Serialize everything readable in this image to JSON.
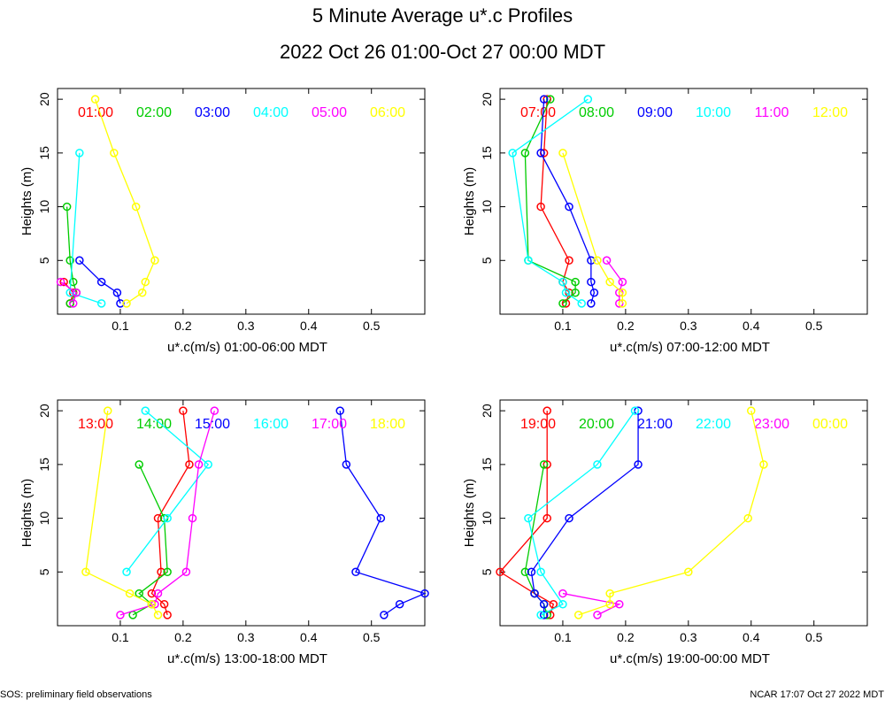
{
  "title": "5 Minute Average u*.c Profiles",
  "subtitle": "2022 Oct 26 01:00-Oct 27 00:00 MDT",
  "footer_left": "SOS: preliminary field observations",
  "footer_right": "NCAR 17:07 Oct 27 2022 MDT",
  "chart_data": [
    {
      "type": "line",
      "xlabel": "u*.c(m/s) 01:00-06:00 MDT",
      "ylabel": "Heights (m)",
      "xlim": [
        0.0,
        0.585
      ],
      "ylim": [
        0,
        21
      ],
      "xticks": [
        "0.1",
        "0.2",
        "0.3",
        "0.4",
        "0.5"
      ],
      "yticks": [
        "5",
        "10",
        "15",
        "20"
      ],
      "series": [
        {
          "name": "01:00",
          "color": "#ff0000",
          "points": [
            [
              0.02,
              1
            ],
            [
              0.025,
              2
            ],
            [
              0.01,
              3
            ]
          ]
        },
        {
          "name": "02:00",
          "color": "#00cc00",
          "points": [
            [
              0.02,
              1
            ],
            [
              0.03,
              2
            ],
            [
              0.025,
              3
            ],
            [
              0.02,
              5
            ],
            [
              0.015,
              10
            ]
          ]
        },
        {
          "name": "03:00",
          "color": "#0000ff",
          "points": [
            [
              0.1,
              1
            ],
            [
              0.095,
              2
            ],
            [
              0.07,
              3
            ],
            [
              0.035,
              5
            ]
          ]
        },
        {
          "name": "04:00",
          "color": "#00ffff",
          "points": [
            [
              0.07,
              1
            ],
            [
              0.02,
              2
            ],
            [
              0.035,
              15
            ]
          ]
        },
        {
          "name": "05:00",
          "color": "#ff00ff",
          "points": [
            [
              0.025,
              1
            ],
            [
              0.03,
              2
            ],
            [
              0.005,
              3
            ]
          ]
        },
        {
          "name": "06:00",
          "color": "#ffff00",
          "points": [
            [
              0.11,
              1
            ],
            [
              0.135,
              2
            ],
            [
              0.14,
              3
            ],
            [
              0.155,
              5
            ],
            [
              0.125,
              10
            ],
            [
              0.09,
              15
            ],
            [
              0.06,
              20
            ]
          ]
        }
      ]
    },
    {
      "type": "line",
      "xlabel": "u*.c(m/s) 07:00-12:00 MDT",
      "ylabel": "Heights (m)",
      "xlim": [
        0.0,
        0.585
      ],
      "ylim": [
        0,
        21
      ],
      "xticks": [
        "0.1",
        "0.2",
        "0.3",
        "0.4",
        "0.5"
      ],
      "yticks": [
        "5",
        "10",
        "15",
        "20"
      ],
      "series": [
        {
          "name": "07:00",
          "color": "#ff0000",
          "points": [
            [
              0.105,
              1
            ],
            [
              0.11,
              2
            ],
            [
              0.1,
              3
            ],
            [
              0.11,
              5
            ],
            [
              0.065,
              10
            ],
            [
              0.07,
              15
            ],
            [
              0.075,
              20
            ]
          ]
        },
        {
          "name": "08:00",
          "color": "#00cc00",
          "points": [
            [
              0.1,
              1
            ],
            [
              0.12,
              2
            ],
            [
              0.12,
              3
            ],
            [
              0.045,
              5
            ],
            [
              0.04,
              15
            ],
            [
              0.08,
              20
            ]
          ]
        },
        {
          "name": "09:00",
          "color": "#0000ff",
          "points": [
            [
              0.145,
              1
            ],
            [
              0.15,
              2
            ],
            [
              0.145,
              3
            ],
            [
              0.145,
              5
            ],
            [
              0.11,
              10
            ],
            [
              0.065,
              15
            ],
            [
              0.07,
              20
            ]
          ]
        },
        {
          "name": "10:00",
          "color": "#00ffff",
          "points": [
            [
              0.13,
              1
            ],
            [
              0.105,
              2
            ],
            [
              0.1,
              3
            ],
            [
              0.045,
              5
            ],
            [
              0.02,
              15
            ],
            [
              0.14,
              20
            ]
          ]
        },
        {
          "name": "11:00",
          "color": "#ff00ff",
          "points": [
            [
              0.19,
              1
            ],
            [
              0.19,
              2
            ],
            [
              0.195,
              3
            ],
            [
              0.17,
              5
            ]
          ]
        },
        {
          "name": "12:00",
          "color": "#ffff00",
          "points": [
            [
              0.195,
              1
            ],
            [
              0.195,
              2
            ],
            [
              0.175,
              3
            ],
            [
              0.155,
              5
            ],
            [
              0.1,
              15
            ]
          ]
        }
      ]
    },
    {
      "type": "line",
      "xlabel": "u*.c(m/s) 13:00-18:00 MDT",
      "ylabel": "Heights (m)",
      "xlim": [
        0.0,
        0.585
      ],
      "ylim": [
        0,
        21
      ],
      "xticks": [
        "0.1",
        "0.2",
        "0.3",
        "0.4",
        "0.5"
      ],
      "yticks": [
        "5",
        "10",
        "15",
        "20"
      ],
      "series": [
        {
          "name": "13:00",
          "color": "#ff0000",
          "points": [
            [
              0.175,
              1
            ],
            [
              0.17,
              2
            ],
            [
              0.15,
              3
            ],
            [
              0.165,
              5
            ],
            [
              0.16,
              10
            ],
            [
              0.21,
              15
            ],
            [
              0.2,
              20
            ]
          ]
        },
        {
          "name": "14:00",
          "color": "#00cc00",
          "points": [
            [
              0.12,
              1
            ],
            [
              0.15,
              2
            ],
            [
              0.13,
              3
            ],
            [
              0.175,
              5
            ],
            [
              0.17,
              10
            ],
            [
              0.13,
              15
            ]
          ]
        },
        {
          "name": "15:00",
          "color": "#0000ff",
          "points": [
            [
              0.52,
              1
            ],
            [
              0.545,
              2
            ],
            [
              0.585,
              3
            ],
            [
              0.475,
              5
            ],
            [
              0.515,
              10
            ],
            [
              0.46,
              15
            ],
            [
              0.45,
              20
            ]
          ]
        },
        {
          "name": "16:00",
          "color": "#00ffff",
          "points": [
            [
              0.11,
              5
            ],
            [
              0.175,
              10
            ],
            [
              0.24,
              15
            ],
            [
              0.14,
              20
            ]
          ]
        },
        {
          "name": "17:00",
          "color": "#ff00ff",
          "points": [
            [
              0.1,
              1
            ],
            [
              0.155,
              2
            ],
            [
              0.16,
              3
            ],
            [
              0.205,
              5
            ],
            [
              0.215,
              10
            ],
            [
              0.225,
              15
            ],
            [
              0.25,
              20
            ]
          ]
        },
        {
          "name": "18:00",
          "color": "#ffff00",
          "points": [
            [
              0.16,
              1
            ],
            [
              0.15,
              2
            ],
            [
              0.115,
              3
            ],
            [
              0.045,
              5
            ],
            [
              0.08,
              20
            ]
          ]
        }
      ]
    },
    {
      "type": "line",
      "xlabel": "u*.c(m/s) 19:00-00:00 MDT",
      "ylabel": "Heights (m)",
      "xlim": [
        0.0,
        0.585
      ],
      "ylim": [
        0,
        21
      ],
      "xticks": [
        "0.1",
        "0.2",
        "0.3",
        "0.4",
        "0.5"
      ],
      "yticks": [
        "5",
        "10",
        "15",
        "20"
      ],
      "series": [
        {
          "name": "19:00",
          "color": "#ff0000",
          "points": [
            [
              0.08,
              1
            ],
            [
              0.085,
              2
            ],
            [
              0.055,
              3
            ],
            [
              0.0,
              5
            ],
            [
              0.075,
              10
            ],
            [
              0.075,
              15
            ],
            [
              0.075,
              20
            ]
          ]
        },
        {
          "name": "20:00",
          "color": "#00cc00",
          "points": [
            [
              0.075,
              1
            ],
            [
              0.07,
              2
            ],
            [
              0.055,
              3
            ],
            [
              0.04,
              5
            ],
            [
              0.07,
              15
            ]
          ]
        },
        {
          "name": "21:00",
          "color": "#0000ff",
          "points": [
            [
              0.07,
              1
            ],
            [
              0.07,
              2
            ],
            [
              0.055,
              3
            ],
            [
              0.05,
              5
            ],
            [
              0.11,
              10
            ],
            [
              0.22,
              15
            ],
            [
              0.22,
              20
            ]
          ]
        },
        {
          "name": "22:00",
          "color": "#00ffff",
          "points": [
            [
              0.065,
              1
            ],
            [
              0.1,
              2
            ],
            [
              0.065,
              5
            ],
            [
              0.045,
              10
            ],
            [
              0.155,
              15
            ],
            [
              0.215,
              20
            ]
          ]
        },
        {
          "name": "23:00",
          "color": "#ff00ff",
          "points": [
            [
              0.155,
              1
            ],
            [
              0.19,
              2
            ],
            [
              0.1,
              3
            ]
          ]
        },
        {
          "name": "00:00",
          "color": "#ffff00",
          "points": [
            [
              0.125,
              1
            ],
            [
              0.175,
              2
            ],
            [
              0.175,
              3
            ],
            [
              0.3,
              5
            ],
            [
              0.395,
              10
            ],
            [
              0.42,
              15
            ],
            [
              0.4,
              20
            ]
          ]
        }
      ]
    }
  ]
}
